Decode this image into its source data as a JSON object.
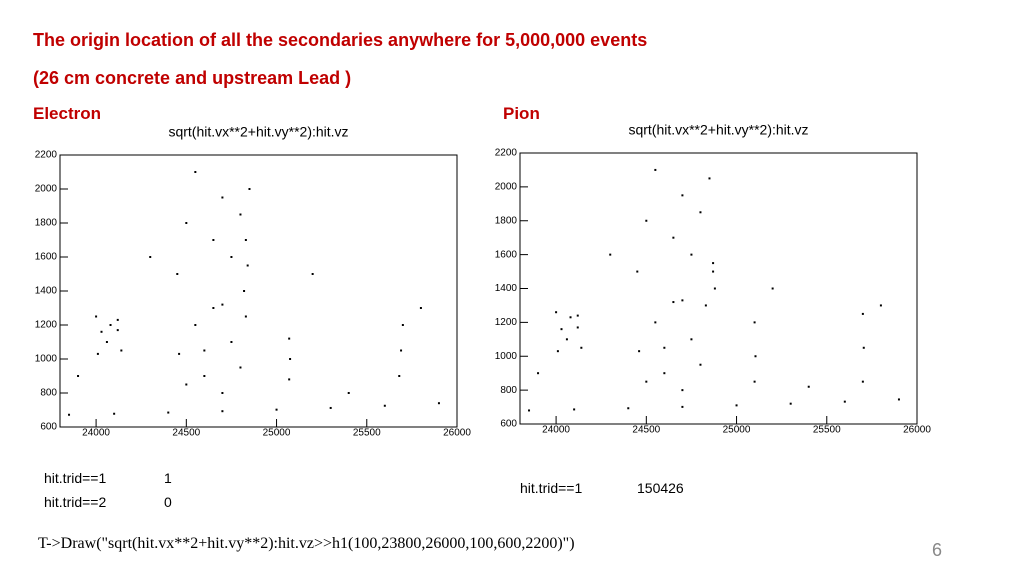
{
  "title": "The origin location of all the secondaries anywhere for 5,000,000 events",
  "subtitle": "(26 cm concrete and upstream Lead )",
  "chart_data": [
    {
      "type": "scatter",
      "panel_label": "Electron",
      "title": "sqrt(hit.vx**2+hit.vy**2):hit.vz",
      "xlim": [
        23800,
        26000
      ],
      "ylim": [
        600,
        2200
      ],
      "xticks": [
        24000,
        24500,
        25000,
        25500,
        26000
      ],
      "yticks": [
        600,
        800,
        1000,
        1200,
        1400,
        1600,
        1800,
        2000,
        2200
      ],
      "series": [
        {
          "color": "#000000",
          "x": [
            23850,
            24100,
            24400,
            24700,
            25000,
            25300,
            25600,
            25900,
            24010,
            24060,
            24120,
            24140,
            24030,
            24080,
            24000,
            24120,
            24460,
            24550,
            24650,
            24750,
            24830,
            24600,
            24700,
            24450,
            24500,
            24550,
            24650,
            24700,
            24750,
            24800,
            24850,
            24820,
            24600,
            24700,
            24800,
            24500,
            24830,
            24840,
            25070,
            25075,
            25070,
            25680,
            25690,
            25700,
            25200,
            25400,
            25800,
            23900,
            24300
          ],
          "values": [
            672,
            678,
            685,
            693,
            702,
            712,
            725,
            740,
            1030,
            1100,
            1170,
            1050,
            1160,
            1200,
            1250,
            1230,
            1030,
            1200,
            1300,
            1100,
            1250,
            1050,
            1320,
            1500,
            1800,
            2100,
            1700,
            1950,
            1600,
            1850,
            2000,
            1400,
            900,
            800,
            950,
            850,
            1700,
            1550,
            880,
            1000,
            1120,
            900,
            1050,
            1200,
            1500,
            800,
            1300,
            900,
            1600
          ]
        }
      ]
    },
    {
      "type": "scatter",
      "panel_label": "Pion",
      "title": "sqrt(hit.vx**2+hit.vy**2):hit.vz",
      "xlim": [
        23800,
        26000
      ],
      "ylim": [
        600,
        2200
      ],
      "xticks": [
        24000,
        24500,
        25000,
        25500,
        26000
      ],
      "yticks": [
        600,
        800,
        1000,
        1200,
        1400,
        1600,
        1800,
        2000,
        2200
      ],
      "series": [
        {
          "color": "#000000",
          "x": [
            23850,
            24100,
            24400,
            24700,
            25000,
            25300,
            25600,
            25900,
            24010,
            24060,
            24120,
            24140,
            24030,
            24080,
            24000,
            24120,
            24460,
            24550,
            24650,
            24750,
            24830,
            24600,
            24700,
            24450,
            24500,
            24550,
            24650,
            24700,
            24750,
            24800,
            24850,
            24870,
            24600,
            24700,
            24800,
            24500,
            24870,
            24880,
            25100,
            25105,
            25100,
            25700,
            25705,
            25700,
            25200,
            25400,
            25800,
            23900,
            24300
          ],
          "values": [
            680,
            686,
            693,
            701,
            710,
            720,
            732,
            745,
            1030,
            1100,
            1170,
            1050,
            1160,
            1230,
            1260,
            1240,
            1030,
            1200,
            1320,
            1100,
            1300,
            1050,
            1330,
            1500,
            1800,
            2100,
            1700,
            1950,
            1600,
            1850,
            2050,
            1500,
            900,
            800,
            950,
            850,
            1550,
            1400,
            850,
            1000,
            1200,
            850,
            1050,
            1250,
            1400,
            820,
            1300,
            900,
            1600
          ]
        }
      ]
    }
  ],
  "notes": {
    "left": [
      [
        "hit.trid==1",
        1
      ],
      [
        "hit.trid==2",
        0
      ]
    ],
    "right": [
      [
        "hit.trid==1",
        150426
      ]
    ]
  },
  "command": "T->Draw(\"sqrt(hit.vx**2+hit.vy**2):hit.vz>>h1(100,23800,26000,100,600,2200)\")",
  "page_number": 6
}
